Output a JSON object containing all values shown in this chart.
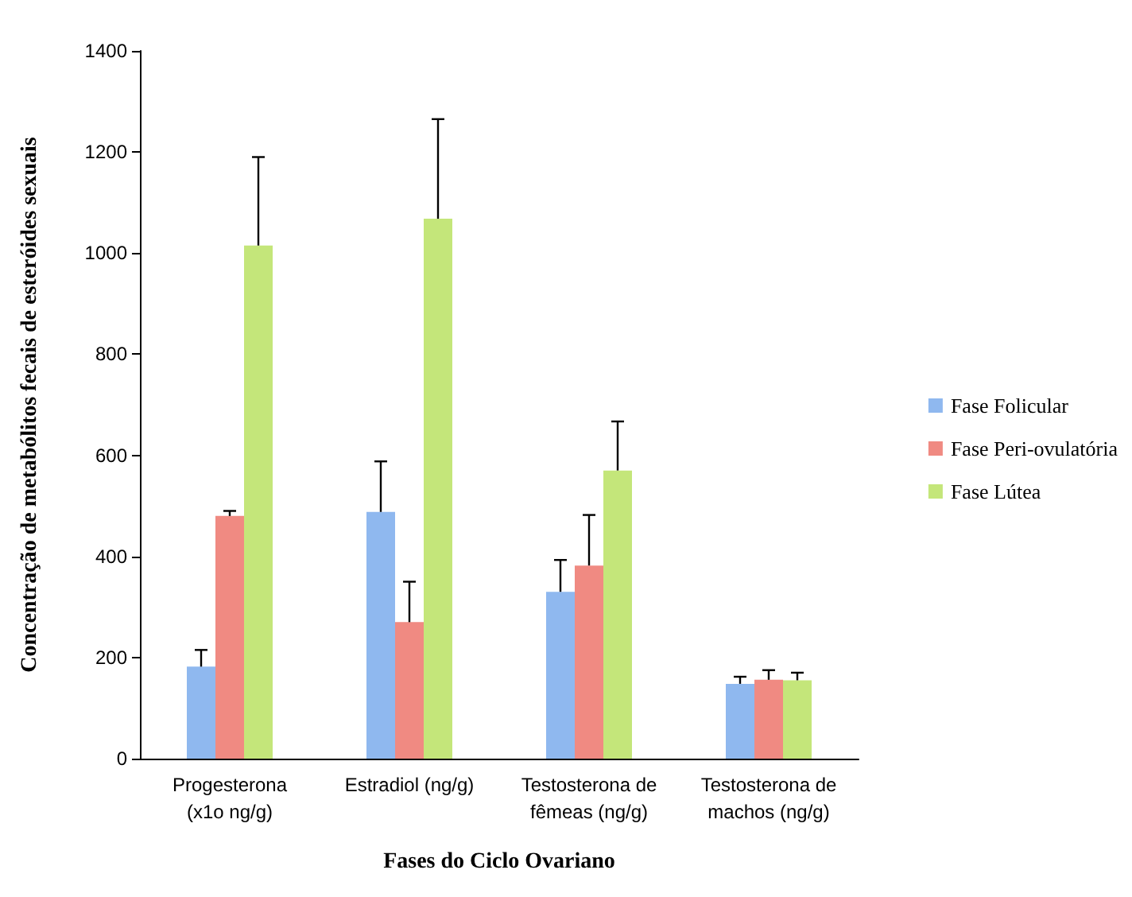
{
  "chart_data": {
    "type": "bar",
    "xlabel": "Fases do Ciclo Ovariano",
    "ylabel": "Concentração de metabólitos fecais de esteróides sexuais",
    "categories": [
      "Progesterona\n(x1o ng/g)",
      "Estradiol (ng/g)",
      "Testosterona de\nfêmeas (ng/g)",
      "Testosterona de\nmachos (ng/g)"
    ],
    "series": [
      {
        "name": "Fase Folicular",
        "color": "#8fb8ef",
        "values": [
          182,
          488,
          330,
          148
        ],
        "errors": [
          [
            182,
            215
          ],
          [
            488,
            588
          ],
          [
            330,
            393
          ],
          [
            148,
            162
          ]
        ]
      },
      {
        "name": "Fase Peri-ovulatória",
        "color": "#f08a82",
        "values": [
          480,
          270,
          382,
          156
        ],
        "errors": [
          [
            480,
            490
          ],
          [
            270,
            350
          ],
          [
            382,
            482
          ],
          [
            156,
            175
          ]
        ]
      },
      {
        "name": "Fase Lútea",
        "color": "#c4e67a",
        "values": [
          1015,
          1068,
          570,
          155
        ],
        "errors": [
          [
            1015,
            1190
          ],
          [
            1068,
            1265
          ],
          [
            570,
            667
          ],
          [
            155,
            170
          ]
        ]
      }
    ],
    "ylim": [
      0,
      1400
    ],
    "yticks": [
      0,
      200,
      400,
      600,
      800,
      1000,
      1200,
      1400
    ],
    "legend": "right"
  }
}
